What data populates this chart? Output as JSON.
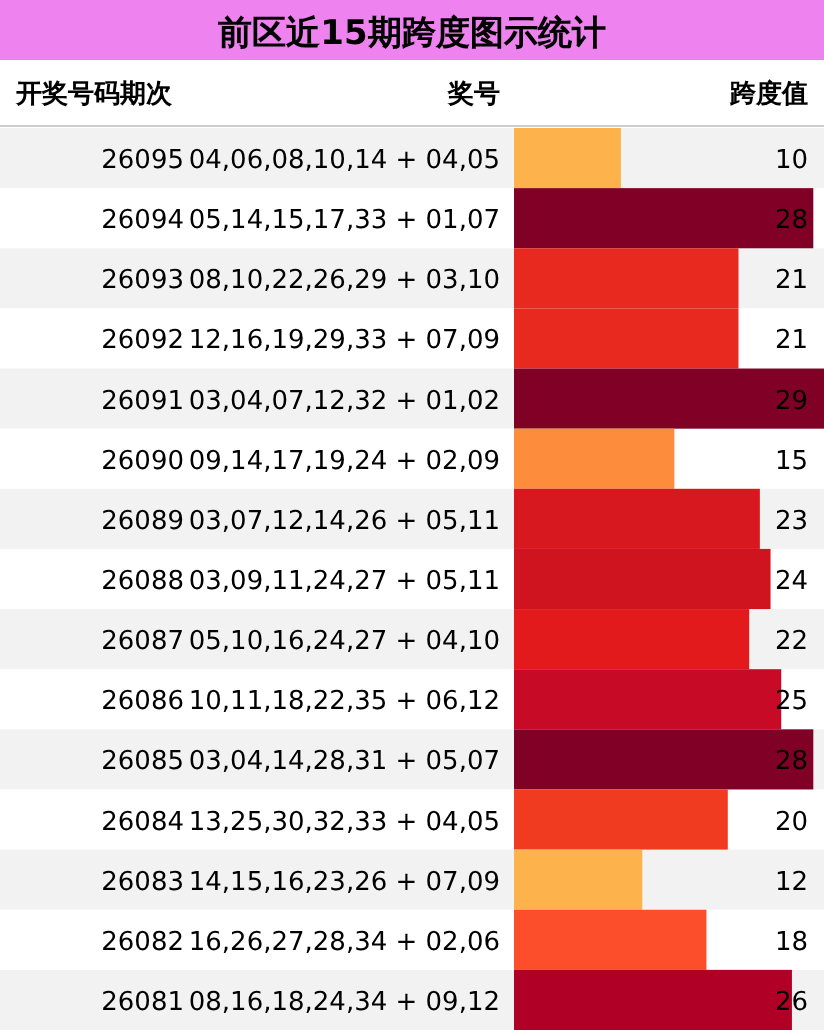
{
  "chart_data": {
    "type": "bar",
    "orientation": "horizontal",
    "title": "前区近15期跨度图示统计",
    "ylabel": "开奖号码期次",
    "xlabel": "跨度值",
    "categories": [
      "26095",
      "26094",
      "26093",
      "26092",
      "26091",
      "26090",
      "26089",
      "26088",
      "26087",
      "26086",
      "26085",
      "26084",
      "26083",
      "26082",
      "26081"
    ],
    "values": [
      10,
      28,
      21,
      21,
      29,
      15,
      23,
      24,
      22,
      25,
      28,
      20,
      12,
      18,
      26
    ],
    "colors": [
      "#feb24c",
      "#800026",
      "#e7291f",
      "#e7291f",
      "#800026",
      "#fd8d3c",
      "#d7191f",
      "#d0141f",
      "#e31a1c",
      "#c70a25",
      "#800026",
      "#f03b20",
      "#feb24c",
      "#fc4e2a",
      "#b10026"
    ],
    "data_labels": true,
    "annotations": [
      "奖号",
      "04,06,08,10,14 + 04,05",
      "05,14,15,17,33 + 01,07",
      "08,10,22,26,29 + 03,10",
      "12,16,19,29,33 + 07,09",
      "03,04,07,12,32 + 01,02",
      "09,14,17,19,24 + 02,09",
      "03,07,12,14,26 + 05,11",
      "03,09,11,24,27 + 05,11",
      "05,10,16,24,27 + 04,10",
      "10,11,18,22,35 + 06,12",
      "03,04,14,28,31 + 05,07",
      "13,25,30,32,33 + 04,05",
      "14,15,16,23,26 + 07,09",
      "16,26,27,28,34 + 02,06",
      "08,16,18,24,34 + 09,12"
    ]
  }
}
